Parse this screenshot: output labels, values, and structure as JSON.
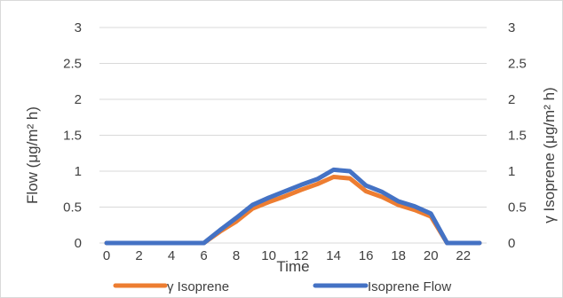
{
  "chart_data": {
    "type": "line",
    "xlabel": "Time",
    "ylabel_left": "Flow (μg/m² h)",
    "ylabel_right": "γ Isoprene (μg/m² h)",
    "x": [
      0,
      1,
      2,
      3,
      4,
      5,
      6,
      7,
      8,
      9,
      10,
      11,
      12,
      13,
      14,
      15,
      16,
      17,
      18,
      19,
      20,
      21,
      22,
      23
    ],
    "x_ticks": [
      "0",
      "2",
      "4",
      "6",
      "8",
      "10",
      "12",
      "14",
      "16",
      "18",
      "20",
      "22"
    ],
    "y_ticks_left": [
      "0",
      "0.5",
      "1",
      "1.5",
      "2",
      "2.5",
      "3"
    ],
    "y_ticks_right": [
      "0",
      "0.5",
      "1",
      "1.5",
      "2",
      "2.5",
      "3"
    ],
    "ylim": [
      0,
      3
    ],
    "xlim": [
      0,
      23
    ],
    "grid": true,
    "legend_position": "bottom",
    "series": [
      {
        "name": "γ Isoprene",
        "axis": "right",
        "color": "#ED7D31",
        "values": [
          0,
          0,
          0,
          0,
          0,
          0,
          0,
          0.16,
          0.3,
          0.48,
          0.57,
          0.65,
          0.74,
          0.82,
          0.92,
          0.9,
          0.72,
          0.64,
          0.53,
          0.46,
          0.37,
          0,
          0,
          0
        ]
      },
      {
        "name": "Isoprene Flow",
        "axis": "left",
        "color": "#4472C4",
        "values": [
          0,
          0,
          0,
          0,
          0,
          0,
          0,
          0.18,
          0.35,
          0.53,
          0.63,
          0.72,
          0.81,
          0.89,
          1.02,
          1.0,
          0.8,
          0.71,
          0.58,
          0.51,
          0.41,
          0,
          0,
          0
        ]
      }
    ]
  }
}
